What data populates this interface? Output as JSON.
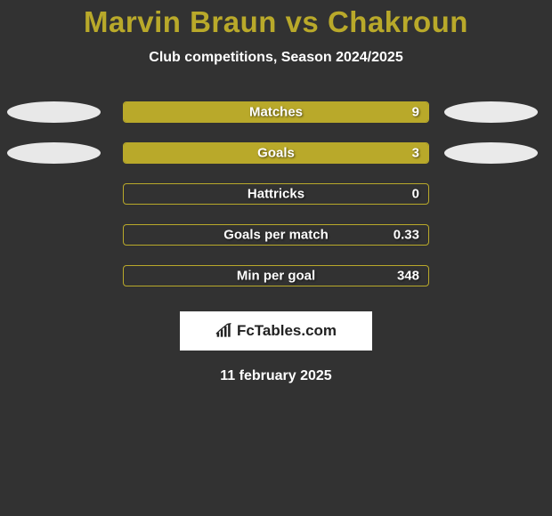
{
  "header": {
    "title": "Marvin Braun vs Chakroun",
    "title_color": "#b9a92a",
    "subtitle": "Club competitions, Season 2024/2025",
    "subtitle_color": "#ffffff"
  },
  "colors": {
    "background": "#323232",
    "bar_border": "#b9a92a",
    "bar_fill": "#b9a92a",
    "pill_left": "#e8e8e8",
    "pill_right": "#eaeaea",
    "text_on_bar": "#ffffff"
  },
  "bars": [
    {
      "label": "Matches",
      "value": "9",
      "fill_pct": 100,
      "show_pills": true
    },
    {
      "label": "Goals",
      "value": "3",
      "fill_pct": 100,
      "show_pills": true
    },
    {
      "label": "Hattricks",
      "value": "0",
      "fill_pct": 0,
      "show_pills": false
    },
    {
      "label": "Goals per match",
      "value": "0.33",
      "fill_pct": 0,
      "show_pills": false
    },
    {
      "label": "Min per goal",
      "value": "348",
      "fill_pct": 0,
      "show_pills": false
    }
  ],
  "logo": {
    "text": "FcTables.com"
  },
  "date": "11 february 2025"
}
